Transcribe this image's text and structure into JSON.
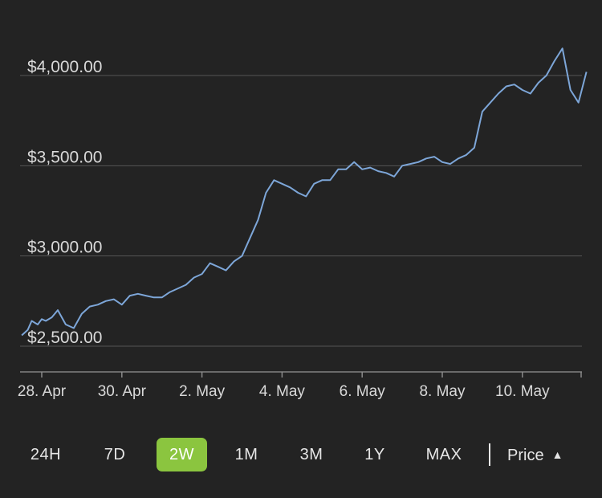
{
  "chart_data": {
    "type": "line",
    "title": "",
    "xlabel": "",
    "ylabel": "",
    "ylim": [
      2430,
      4250
    ],
    "y_ticks": [
      2500,
      3000,
      3500,
      4000
    ],
    "y_tick_labels": [
      "$2,500.00",
      "$3,000.00",
      "$3,500.00",
      "$4,000.00"
    ],
    "x_range": [
      0,
      13.7
    ],
    "x_ticks": [
      0,
      2,
      4,
      6,
      8,
      10,
      12
    ],
    "x_tick_labels": [
      "28. Apr",
      "30. Apr",
      "2. May",
      "4. May",
      "6. May",
      "8. May",
      "10. May"
    ],
    "series": [
      {
        "name": "Price",
        "color": "#7da6d8",
        "x": [
          -0.5,
          -0.35,
          -0.25,
          -0.1,
          0.0,
          0.1,
          0.25,
          0.4,
          0.5,
          0.6,
          0.8,
          1.0,
          1.2,
          1.4,
          1.6,
          1.8,
          2.0,
          2.2,
          2.4,
          2.6,
          2.8,
          3.0,
          3.2,
          3.4,
          3.6,
          3.8,
          4.0,
          4.2,
          4.4,
          4.6,
          4.8,
          5.0,
          5.2,
          5.4,
          5.6,
          5.8,
          6.0,
          6.2,
          6.4,
          6.6,
          6.8,
          7.0,
          7.2,
          7.4,
          7.6,
          7.8,
          8.0,
          8.2,
          8.4,
          8.6,
          8.8,
          9.0,
          9.2,
          9.4,
          9.6,
          9.8,
          10.0,
          10.2,
          10.4,
          10.6,
          10.8,
          11.0,
          11.2,
          11.4,
          11.6,
          11.8,
          12.0,
          12.2,
          12.4,
          12.6,
          12.8,
          13.0,
          13.2,
          13.4,
          13.6
        ],
        "values": [
          2560,
          2590,
          2640,
          2620,
          2650,
          2640,
          2660,
          2700,
          2660,
          2620,
          2600,
          2680,
          2720,
          2730,
          2750,
          2760,
          2730,
          2780,
          2790,
          2780,
          2770,
          2770,
          2800,
          2820,
          2840,
          2880,
          2900,
          2960,
          2940,
          2920,
          2970,
          3000,
          3100,
          3200,
          3350,
          3420,
          3400,
          3380,
          3350,
          3330,
          3400,
          3420,
          3420,
          3480,
          3480,
          3520,
          3480,
          3490,
          3470,
          3460,
          3440,
          3500,
          3510,
          3520,
          3540,
          3550,
          3520,
          3510,
          3540,
          3560,
          3600,
          3800,
          3850,
          3900,
          3940,
          3950,
          3920,
          3900,
          3960,
          4000,
          4080,
          4150,
          3920,
          3850,
          4020
        ]
      }
    ]
  },
  "range_selector": {
    "buttons": [
      "24H",
      "7D",
      "2W",
      "1M",
      "3M",
      "1Y",
      "MAX"
    ],
    "active": "2W",
    "metric_label": "Price",
    "metric_caret": "▲",
    "accent": "#8bc53f"
  }
}
